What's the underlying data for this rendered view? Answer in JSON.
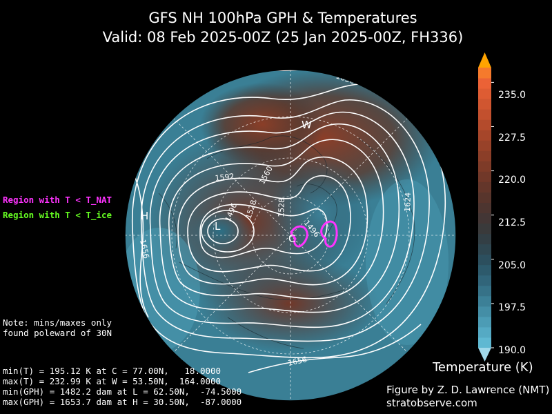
{
  "title_line1": "GFS NH 100hPa GPH & Temperatures",
  "title_line2": "Valid: 08 Feb 2025-00Z  (25 Jan 2025-00Z, FH336)",
  "legend": {
    "nat": "Region with T < T_NAT",
    "ice": "Region with T < T_ice"
  },
  "note": "Note: mins/maxes only\nfound poleward of 30N",
  "stats": {
    "min_t": "min(T) = 195.12 K at C = 77.00N,   18.0000",
    "max_t": "max(T) = 232.99 K at W = 53.50N,  164.0000",
    "min_gph": "min(GPH) = 1482.2 dam at L = 62.50N,  -74.5000",
    "max_gph": "max(GPH) = 1653.7 dam at H = 30.50N,  -87.0000"
  },
  "credit": {
    "line1": "Figure by Z. D. Lawrence (NMT)",
    "line2": "stratobserve.com"
  },
  "colorbar": {
    "title": "Temperature (K)",
    "ticks": [
      "235.0",
      "227.5",
      "220.0",
      "212.5",
      "205.0",
      "197.5",
      "190.0"
    ],
    "range": [
      190.0,
      237.5
    ],
    "colors_low_to_high": [
      "#5fb8d2",
      "#55aac4",
      "#4c9cb5",
      "#448ea6",
      "#3c8097",
      "#367288",
      "#31657a",
      "#2d5a6c",
      "#2c4f5e",
      "#2f4751",
      "#333f45",
      "#3a3a3b",
      "#433635",
      "#4d3530",
      "#58352c",
      "#64362a",
      "#713829",
      "#7e3b28",
      "#8b3e28",
      "#984229",
      "#a6462a",
      "#b44b2c",
      "#c2502e",
      "#d05630",
      "#de5c33",
      "#eb6236",
      "#f57a2c"
    ],
    "extend_low": "#a0d8ea",
    "extend_high": "#ffa400"
  },
  "map": {
    "markers": [
      {
        "id": "H",
        "label": "H"
      },
      {
        "id": "L",
        "label": "L"
      },
      {
        "id": "W",
        "label": "W"
      },
      {
        "id": "C",
        "label": "C"
      }
    ],
    "contour_labels": [
      "1656",
      "1592",
      "1560",
      "1528",
      "1496",
      "1528",
      "1496",
      "1624",
      "1656",
      "1656"
    ],
    "nat_color": "#ff33ff"
  }
}
